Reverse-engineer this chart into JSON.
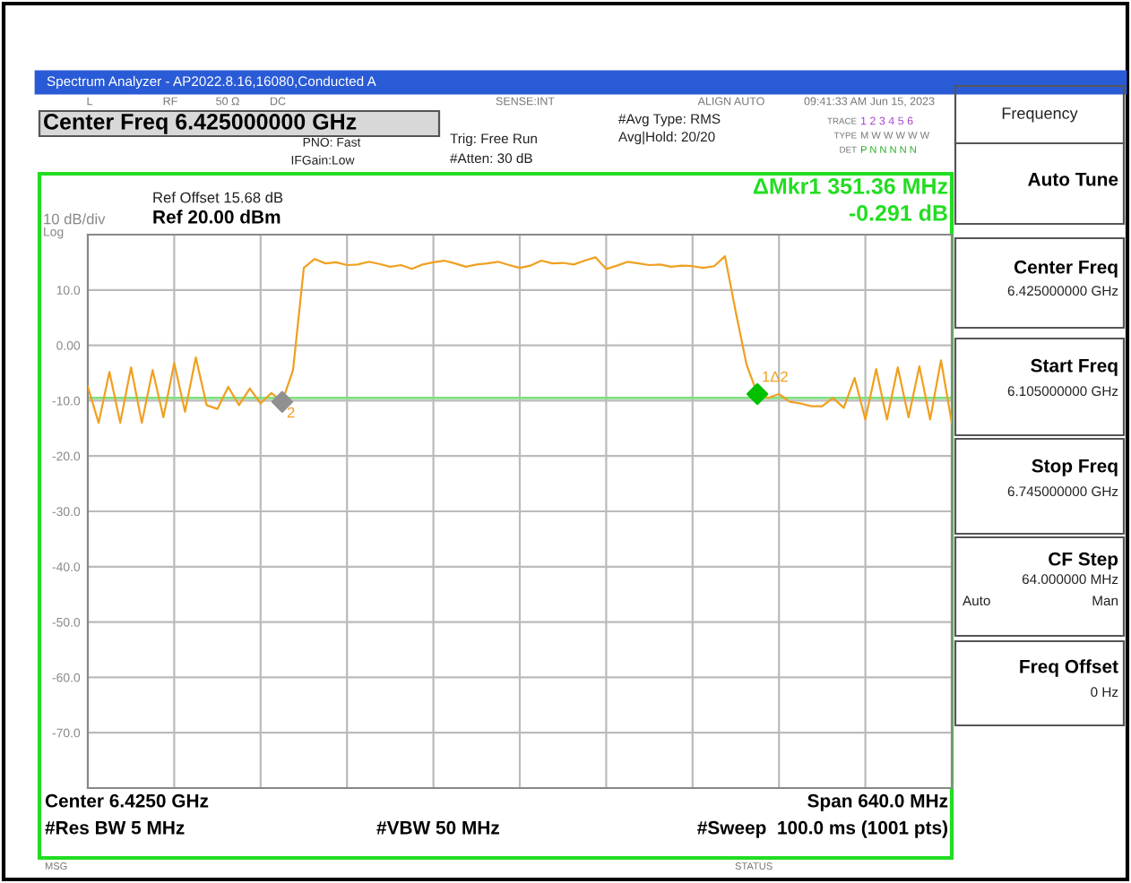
{
  "chart_data": {
    "type": "line",
    "categories": [
      null,
      null,
      null,
      null,
      null,
      null,
      null,
      null,
      null,
      null,
      null,
      null,
      null,
      null,
      null,
      null,
      null,
      null,
      null,
      null,
      null,
      null,
      null,
      null,
      null,
      null,
      null,
      null,
      null,
      null,
      null,
      null,
      null,
      null,
      null,
      null,
      null,
      null,
      null,
      null,
      null,
      null,
      null,
      null,
      null,
      null,
      null,
      null,
      null,
      null,
      null,
      null,
      null,
      null,
      null,
      null,
      null,
      null,
      null,
      null,
      null,
      null,
      null,
      null,
      null,
      null,
      null,
      null,
      null,
      null,
      null,
      null,
      null,
      null,
      null,
      null,
      null,
      null,
      null,
      null,
      null
    ],
    "ylim": [
      -80,
      20
    ],
    "yticks": [
      {
        "value": 10,
        "label": "10.0"
      },
      {
        "value": 0,
        "label": "0.00"
      },
      {
        "value": -10,
        "label": "-10.0"
      },
      {
        "value": -20,
        "label": "-20.0"
      },
      {
        "value": -30,
        "label": "-30.0"
      },
      {
        "value": -40,
        "label": "-40.0"
      },
      {
        "value": -50,
        "label": "-50.0"
      },
      {
        "value": -60,
        "label": "-60.0"
      },
      {
        "value": -70,
        "label": "-70.0"
      }
    ],
    "tick_labels": "y",
    "grid": true,
    "marker": "none",
    "line_style": "solid",
    "series": [
      {
        "color": "#f0a020",
        "values": [
          -7.5,
          -14.0,
          -4.8,
          -14.0,
          -4.0,
          -14.0,
          -4.5,
          -13.0,
          -3.2,
          -12.0,
          -2.2,
          -10.8,
          -11.5,
          -7.5,
          -10.8,
          -7.8,
          -10.5,
          -8.6,
          -10.2,
          -4.5,
          14.0,
          15.6,
          14.8,
          15.0,
          14.5,
          14.6,
          15.1,
          14.7,
          14.2,
          14.5,
          13.8,
          14.6,
          15.0,
          15.3,
          14.8,
          14.2,
          14.6,
          14.8,
          15.1,
          14.5,
          14.0,
          14.4,
          15.3,
          14.8,
          14.9,
          14.6,
          15.3,
          15.9,
          13.8,
          14.4,
          15.1,
          14.8,
          14.5,
          14.6,
          14.2,
          14.4,
          14.3,
          14.0,
          14.3,
          16.1,
          6.0,
          -3.5,
          -8.8,
          -9.5,
          -8.8,
          -10.2,
          -10.5,
          -11.0,
          -11.0,
          -9.5,
          -11.3,
          -5.9,
          -13.4,
          -4.3,
          -13.4,
          -4.0,
          -13.0,
          -3.8,
          -13.4,
          -2.7,
          -14.0
        ]
      },
      {
        "type": "scatter",
        "marker": "diamond",
        "colors": [
          null,
          null,
          null,
          null,
          null,
          null,
          null,
          null,
          null,
          null,
          null,
          null,
          null,
          null,
          null,
          null,
          null,
          null,
          "#909090",
          null,
          null,
          null,
          null,
          null,
          null,
          null,
          null,
          null,
          null,
          null,
          null,
          null,
          null,
          null,
          null,
          null,
          null,
          null,
          null,
          null,
          null,
          null,
          null,
          null,
          null,
          null,
          null,
          null,
          null,
          null,
          null,
          null,
          null,
          null,
          null,
          null,
          null,
          null,
          null,
          null,
          null,
          null,
          "#00c000",
          null,
          null,
          null,
          null,
          null,
          null,
          null,
          null,
          null,
          null,
          null,
          null,
          null,
          null,
          null,
          null,
          null,
          null
        ],
        "values": [
          null,
          null,
          null,
          null,
          null,
          null,
          null,
          null,
          null,
          null,
          null,
          null,
          null,
          null,
          null,
          null,
          null,
          null,
          -10.2,
          null,
          null,
          null,
          null,
          null,
          null,
          null,
          null,
          null,
          null,
          null,
          null,
          null,
          null,
          null,
          null,
          null,
          null,
          null,
          null,
          null,
          null,
          null,
          null,
          null,
          null,
          null,
          null,
          null,
          null,
          null,
          null,
          null,
          null,
          null,
          null,
          null,
          null,
          null,
          null,
          null,
          null,
          null,
          -8.8,
          null,
          null,
          null,
          null,
          null,
          null,
          null,
          null,
          null,
          null,
          null,
          null,
          null,
          null,
          null,
          null,
          null,
          null
        ]
      }
    ],
    "ref_lines": [
      {
        "axis": "y",
        "value": -9.5,
        "color": "#80e080",
        "line_style": "solid"
      }
    ],
    "annotations": [
      "Spectrum Analyzer - AP2022.8.16,16080,Conducted A",
      "L",
      "RF",
      "50 Ω",
      "DC",
      "SENSE:INT",
      "ALIGN AUTO",
      "09:41:33 AM Jun 15, 2023",
      "Center Freq 6.425000000 GHz",
      "PNO: Fast",
      "IFGain:Low",
      "Trig: Free Run",
      "#Atten: 30 dB",
      "#Avg Type: RMS",
      "Avg|Hold: 20/20",
      "TRACE",
      "1 2 3 4 5 6",
      "TYPE",
      "M W W W W W",
      "DET",
      "P N N N N N",
      "Ref Offset 15.68 dB",
      "Ref 20.00 dBm",
      "10 dB/div",
      "Log",
      "ΔMkr1 351.36 MHz",
      "-0.291 dB",
      "Center 6.4250 GHz",
      "Span 640.0 MHz",
      "#Res BW 5 MHz",
      "#VBW 50 MHz",
      "#Sweep  100.0 ms (1001 pts)",
      "MSG",
      "STATUS",
      "Frequency",
      "Auto Tune",
      "Center Freq",
      "6.425000000 GHz",
      "Start Freq",
      "6.105000000 GHz",
      "Stop Freq",
      "6.745000000 GHz",
      "CF Step",
      "64.000000 MHz",
      "Auto",
      "Man",
      "Freq Offset",
      "0 Hz",
      "2",
      "1Δ2"
    ]
  }
}
